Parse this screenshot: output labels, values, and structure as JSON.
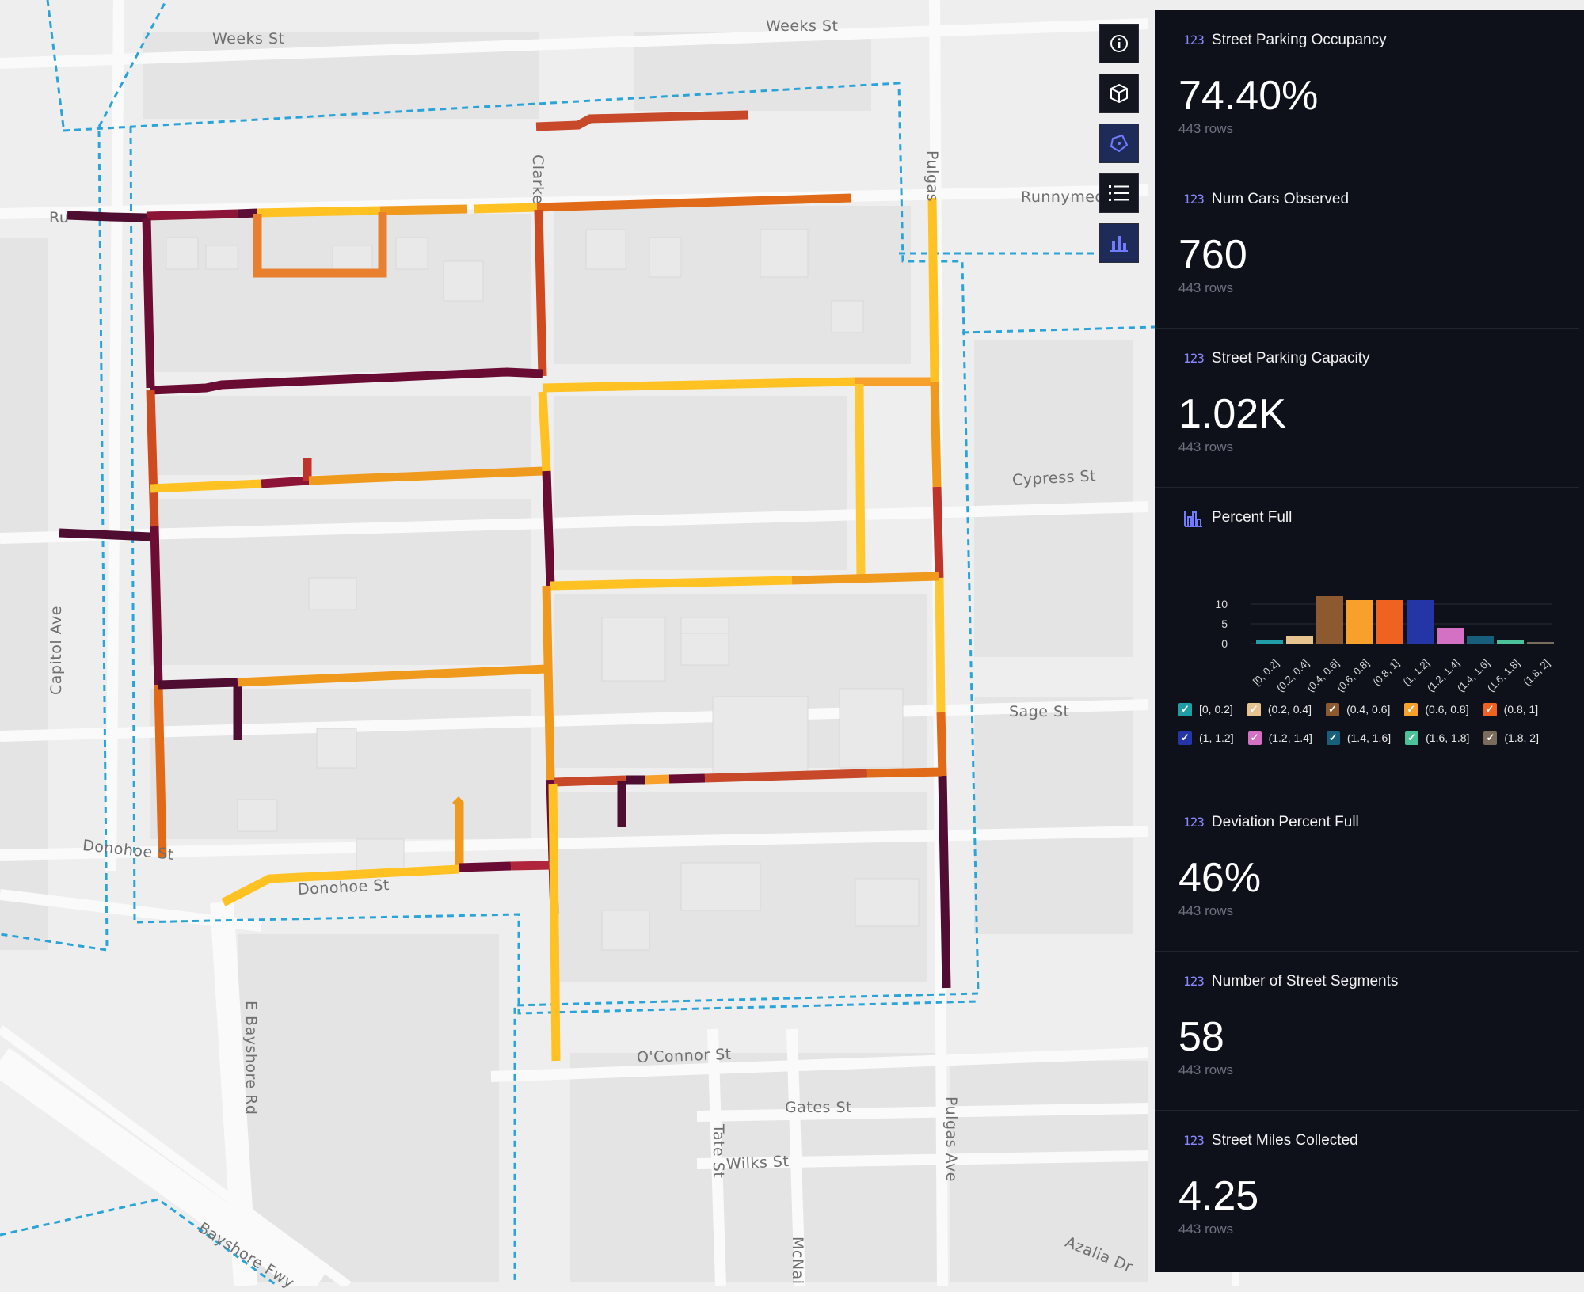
{
  "map": {
    "street_labels": {
      "weeks_st_left": "Weeks St",
      "weeks_st_right": "Weeks St",
      "ru": "Ru",
      "runnymede": "Runnymed",
      "clarke": "Clarke",
      "pulgas_top": "Pulgas",
      "cypress": "Cypress St",
      "sage": "Sage St",
      "capitol": "Capitol Ave",
      "donohoe_st": "Donohoe St",
      "donohoe_st2": "Donohoe St",
      "e_bayshore": "E Bayshore Rd",
      "oconnor": "O'Connor St",
      "gates": "Gates St",
      "tate": "Tate St",
      "wilks": "Wilks St",
      "pulgas_bottom": "Pulgas Ave",
      "bayshore_fwy": "Bayshore Fwy",
      "azalia": "Azalia Dr",
      "mcnair": "McNai"
    }
  },
  "toolbar": {
    "tools": [
      "info-icon",
      "cube-icon",
      "polygon-select-icon",
      "list-icon",
      "bar-chart-icon"
    ]
  },
  "panel": {
    "badge": "123",
    "cards": [
      {
        "title": "Street Parking Occupancy",
        "value": "74.40%",
        "rows": "443 rows"
      },
      {
        "title": "Num Cars Observed",
        "value": "760",
        "rows": "443 rows"
      },
      {
        "title": "Street Parking Capacity",
        "value": "1.02K",
        "rows": "443 rows"
      }
    ],
    "histogram": {
      "title": "Percent Full"
    },
    "cards_after": [
      {
        "title": "Deviation Percent Full",
        "value": "46%",
        "rows": "443 rows"
      },
      {
        "title": "Number of Street Segments",
        "value": "58",
        "rows": "443 rows"
      },
      {
        "title": "Street Miles Collected",
        "value": "4.25",
        "rows": "443 rows"
      }
    ]
  },
  "chart_data": {
    "type": "bar",
    "title": "Percent Full",
    "categories": [
      "[0, 0.2]",
      "(0.2, 0.4]",
      "(0.4, 0.6]",
      "(0.6, 0.8]",
      "(0.8, 1]",
      "(1, 1.2]",
      "(1.2, 1.4]",
      "(1.4, 1.6]",
      "(1.6, 1.8]",
      "(1.8, 2]"
    ],
    "values": [
      1,
      2,
      12,
      11,
      11,
      11,
      4,
      2,
      1,
      0
    ],
    "colors": [
      "#1f9ea7",
      "#e6c38f",
      "#8c5a2e",
      "#f8a02c",
      "#f0621f",
      "#2436a5",
      "#d471c4",
      "#175f7a",
      "#4cc29a",
      "#7a6c5a"
    ],
    "yticks": [
      0,
      5,
      10
    ],
    "ylim": [
      0,
      12
    ],
    "legend": [
      {
        "label": "[0, 0.2]",
        "color": "#1f9ea7"
      },
      {
        "label": "(0.2, 0.4]",
        "color": "#e6c38f"
      },
      {
        "label": "(0.4, 0.6]",
        "color": "#8c5a2e"
      },
      {
        "label": "(0.6, 0.8]",
        "color": "#f8a02c"
      },
      {
        "label": "(0.8, 1]",
        "color": "#f0621f"
      },
      {
        "label": "(1, 1.2]",
        "color": "#2436a5"
      },
      {
        "label": "(1.2, 1.4]",
        "color": "#d471c4"
      },
      {
        "label": "(1.4, 1.6]",
        "color": "#175f7a"
      },
      {
        "label": "(1.6, 1.8]",
        "color": "#4cc29a"
      },
      {
        "label": "(1.8, 2]",
        "color": "#7a6c5a"
      }
    ],
    "legend_placement": "bottom"
  }
}
